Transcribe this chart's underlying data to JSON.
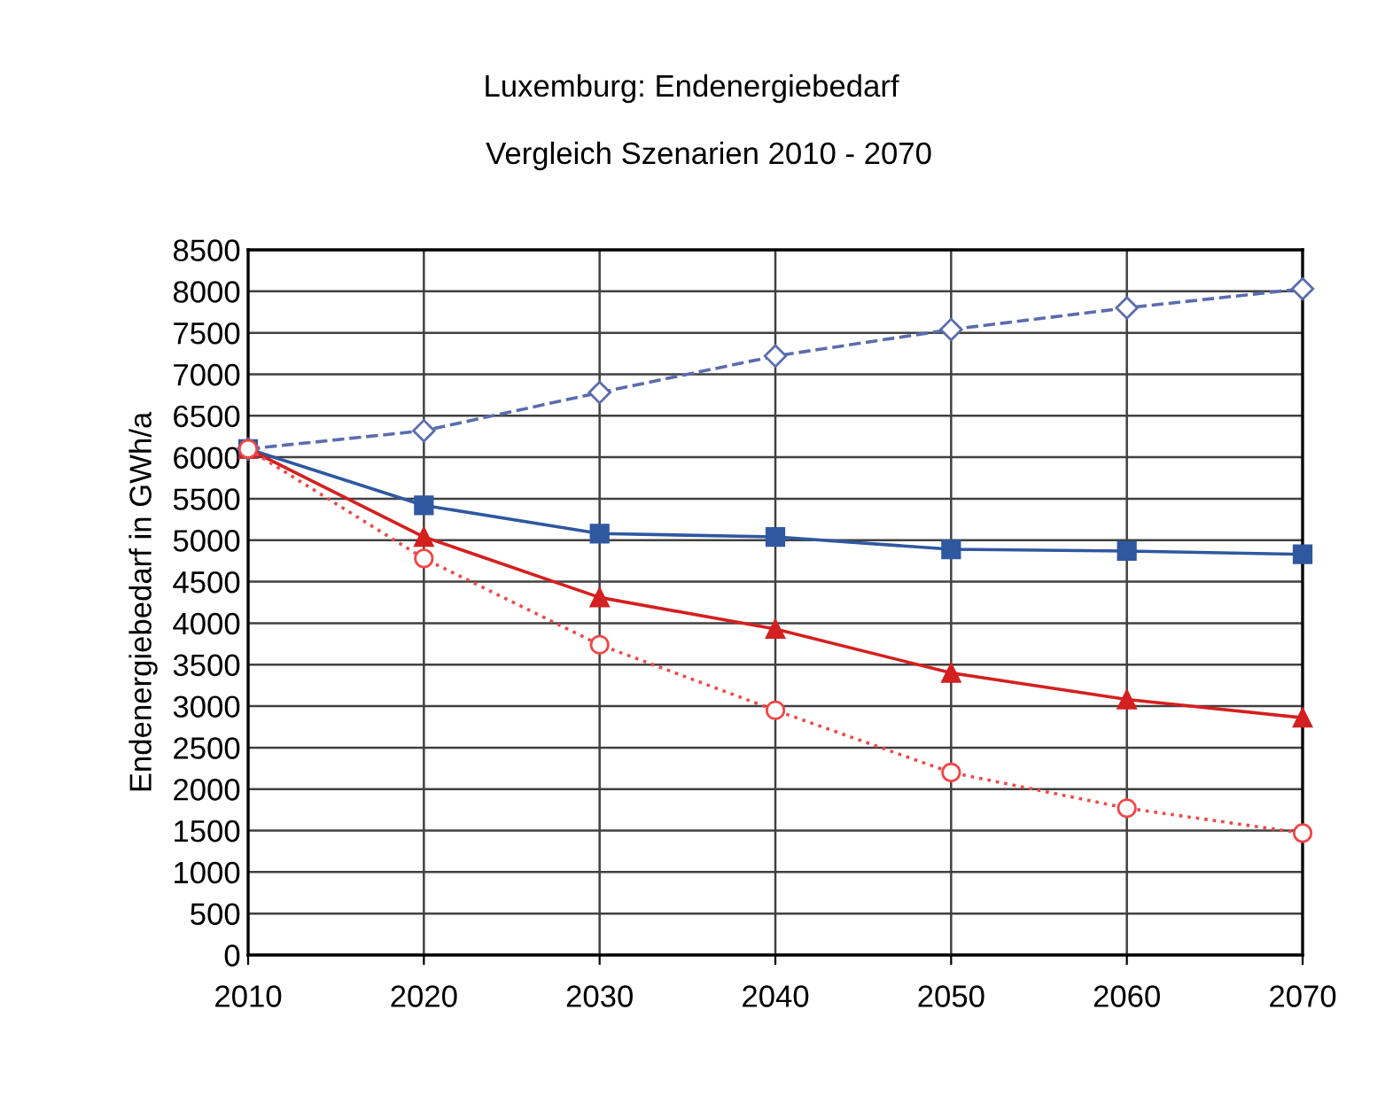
{
  "chart_data": {
    "type": "line",
    "title": "Luxemburg: Endenergiebedarf",
    "subtitle": "Vergleich Szenarien 2010 - 2070",
    "ylabel": "Endenergiebedarf in GWh/a",
    "x": [
      2010,
      2020,
      2030,
      2040,
      2050,
      2060,
      2070
    ],
    "series": [
      {
        "color": "#5b6cad",
        "marker": "diamond",
        "line_style": "dashed",
        "values": [
          6100,
          6320,
          6780,
          7220,
          7540,
          7800,
          8030
        ]
      },
      {
        "color": "#2f58a0",
        "marker": "square",
        "line_style": "solid",
        "values": [
          6100,
          5420,
          5080,
          5040,
          4890,
          4870,
          4830
        ]
      },
      {
        "color": "#d42020",
        "marker": "triangle",
        "line_style": "solid",
        "values": [
          6100,
          5040,
          4310,
          3930,
          3400,
          3080,
          2860
        ]
      },
      {
        "color": "#f04848",
        "marker": "circle",
        "line_style": "dotted",
        "values": [
          6100,
          4780,
          3740,
          2950,
          2200,
          1770,
          1470
        ]
      }
    ],
    "xlim": [
      2010,
      2070
    ],
    "xticks": [
      2010,
      2020,
      2030,
      2040,
      2050,
      2060,
      2070
    ],
    "ylim": [
      0,
      8500
    ],
    "yticks": [
      0,
      500,
      1000,
      1500,
      2000,
      2500,
      3000,
      3500,
      4000,
      4500,
      5000,
      5500,
      6000,
      6500,
      7000,
      7500,
      8000,
      8500
    ],
    "grid": true,
    "legend": false
  }
}
